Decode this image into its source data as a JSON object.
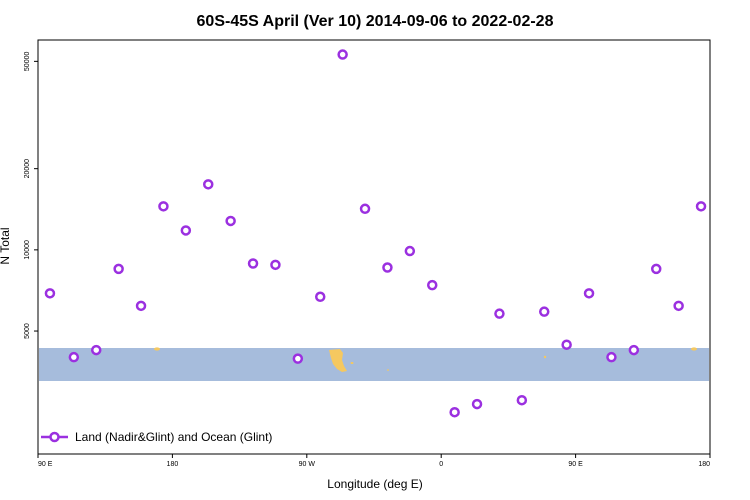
{
  "chart_data": {
    "type": "scatter",
    "title": "60S-45S April (Ver 10)   2014-09-06 to 2022-02-28",
    "xlabel": "Longitude (deg E)",
    "ylabel": "N Total",
    "x_tick_labels": [
      "90 E",
      "180",
      "90 W",
      "0",
      "90 E",
      "180"
    ],
    "x_tick_values": [
      90,
      180,
      270,
      360,
      450,
      540
    ],
    "xlim": [
      90,
      540
    ],
    "y_scale": "log",
    "y_tick_values": [
      5000,
      10000,
      20000,
      50000
    ],
    "y_tick_labels": [
      "5000",
      "10000",
      "20000",
      "50000"
    ],
    "ylim": [
      1750,
      60000
    ],
    "grid": false,
    "legend": "bottom-left",
    "point_color": "#9b30e0",
    "land_color": "#f5c860",
    "band_color": "#a6bcdc",
    "band": {
      "lat_range": [
        "60S",
        "45S"
      ]
    },
    "series": [
      {
        "name": "Land (Nadir&Glint) and Ocean (Glint)",
        "points": [
          {
            "x": 98,
            "y": 6900
          },
          {
            "x": 114,
            "y": 4000
          },
          {
            "x": 129,
            "y": 4250
          },
          {
            "x": 144,
            "y": 8500
          },
          {
            "x": 159,
            "y": 6200
          },
          {
            "x": 174,
            "y": 14500
          },
          {
            "x": 189,
            "y": 11800
          },
          {
            "x": 204,
            "y": 17500
          },
          {
            "x": 219,
            "y": 12800
          },
          {
            "x": 234,
            "y": 8900
          },
          {
            "x": 249,
            "y": 8800
          },
          {
            "x": 264,
            "y": 3950
          },
          {
            "x": 279,
            "y": 6700
          },
          {
            "x": 294,
            "y": 53000
          },
          {
            "x": 309,
            "y": 14200
          },
          {
            "x": 324,
            "y": 8600
          },
          {
            "x": 339,
            "y": 9900
          },
          {
            "x": 354,
            "y": 7400
          },
          {
            "x": 369,
            "y": 2500
          },
          {
            "x": 384,
            "y": 2680
          },
          {
            "x": 399,
            "y": 5800
          },
          {
            "x": 414,
            "y": 2770
          },
          {
            "x": 429,
            "y": 5900
          },
          {
            "x": 444,
            "y": 4450
          },
          {
            "x": 459,
            "y": 6900
          },
          {
            "x": 474,
            "y": 4000
          },
          {
            "x": 489,
            "y": 4250
          },
          {
            "x": 504,
            "y": 8500
          },
          {
            "x": 519,
            "y": 6200
          },
          {
            "x": 534,
            "y": 14500
          }
        ]
      }
    ]
  }
}
